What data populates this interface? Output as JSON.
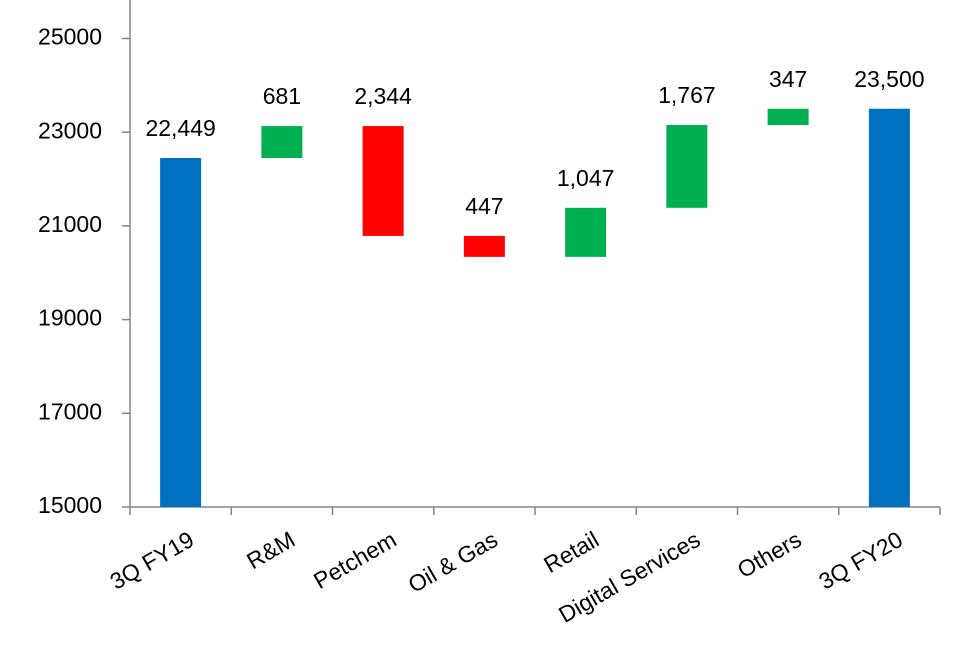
{
  "chart_data": {
    "type": "waterfall",
    "categories": [
      "3Q FY19",
      "R&M",
      "Petchem",
      "Oil & Gas",
      "Retail",
      "Digital Services",
      "Others",
      "3Q FY20"
    ],
    "measures": [
      "total",
      "relative",
      "relative",
      "relative",
      "relative",
      "relative",
      "relative",
      "total"
    ],
    "values": [
      22449,
      681,
      -2344,
      -447,
      1047,
      1767,
      347,
      23500
    ],
    "value_labels": [
      "22,449",
      "681",
      "2,344",
      "447",
      "1,047",
      "1,767",
      "347",
      "23,500"
    ],
    "colors": [
      "#0070c0",
      "#00b050",
      "#ff0000",
      "#ff0000",
      "#00b050",
      "#00b050",
      "#00b050",
      "#0070c0"
    ],
    "ylim": [
      15000,
      25800
    ],
    "yticks": [
      15000,
      17000,
      19000,
      21000,
      23000,
      25000
    ]
  }
}
